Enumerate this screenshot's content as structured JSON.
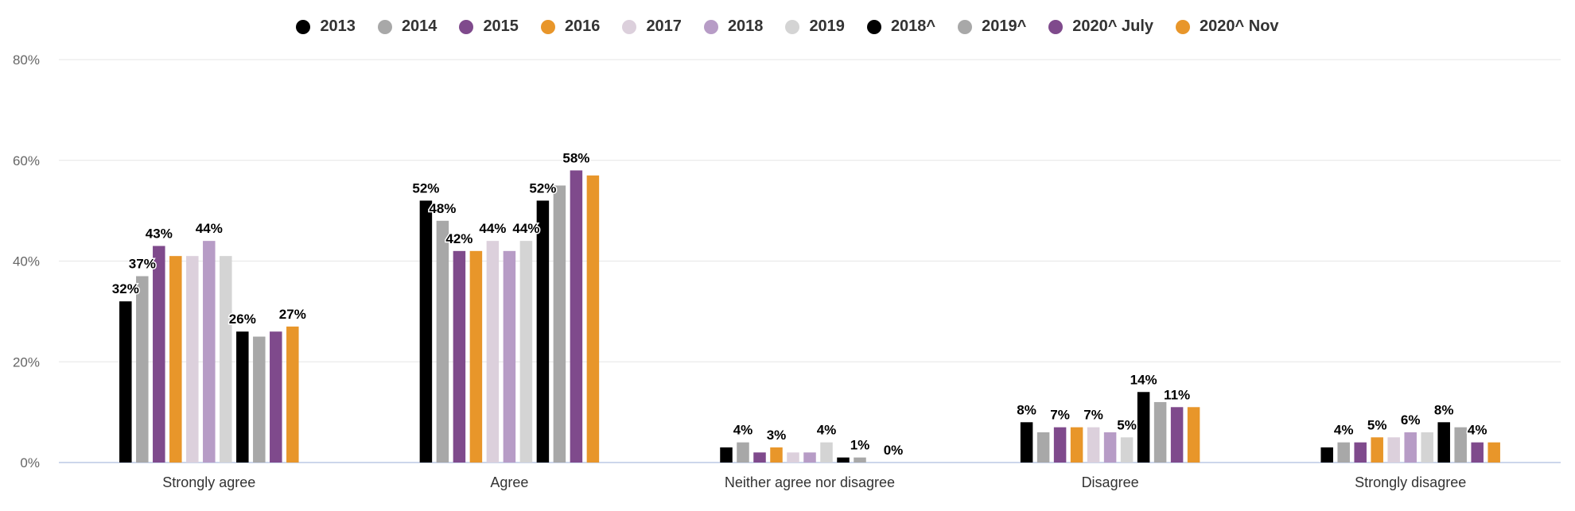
{
  "chart_data": {
    "type": "bar",
    "categories": [
      "Strongly agree",
      "Agree",
      "Neither agree nor disagree",
      "Disagree",
      "Strongly disagree"
    ],
    "ylim": [
      0,
      80
    ],
    "yticks": [
      "0%",
      "20%",
      "40%",
      "60%",
      "80%"
    ],
    "ytick_values": [
      0,
      20,
      40,
      60,
      80
    ],
    "legend_position": "top-center",
    "grid": true,
    "series": [
      {
        "name": "2013",
        "color": "#000000",
        "values": [
          32,
          52,
          3,
          8,
          3
        ]
      },
      {
        "name": "2014",
        "color": "#a8a8a8",
        "values": [
          37,
          48,
          4,
          6,
          4
        ]
      },
      {
        "name": "2015",
        "color": "#7f4a8c",
        "values": [
          43,
          42,
          2,
          7,
          4
        ]
      },
      {
        "name": "2016",
        "color": "#e8962a",
        "values": [
          41,
          42,
          3,
          7,
          5
        ]
      },
      {
        "name": "2017",
        "color": "#dcd0dc",
        "values": [
          41,
          44,
          2,
          7,
          5
        ]
      },
      {
        "name": "2018",
        "color": "#b79cc6",
        "values": [
          44,
          42,
          2,
          6,
          6
        ]
      },
      {
        "name": "2019",
        "color": "#d4d4d4",
        "values": [
          41,
          44,
          4,
          5,
          6
        ]
      },
      {
        "name": "2018^",
        "color": "#000000",
        "values": [
          26,
          52,
          1,
          14,
          8
        ]
      },
      {
        "name": "2019^",
        "color": "#a8a8a8",
        "values": [
          25,
          55,
          1,
          12,
          7
        ]
      },
      {
        "name": "2020^ July",
        "color": "#7f4a8c",
        "values": [
          26,
          58,
          0,
          11,
          4
        ]
      },
      {
        "name": "2020^ Nov",
        "color": "#e8962a",
        "values": [
          27,
          57,
          0,
          11,
          4
        ]
      }
    ],
    "data_labels": [
      {
        "category": 0,
        "series": 0,
        "text": "32%"
      },
      {
        "category": 0,
        "series": 1,
        "text": "37%"
      },
      {
        "category": 0,
        "series": 2,
        "text": "43%"
      },
      {
        "category": 0,
        "series": 5,
        "text": "44%"
      },
      {
        "category": 0,
        "series": 7,
        "text": "26%"
      },
      {
        "category": 0,
        "series": 10,
        "text": "27%"
      },
      {
        "category": 1,
        "series": 0,
        "text": "52%"
      },
      {
        "category": 1,
        "series": 1,
        "text": "48%"
      },
      {
        "category": 1,
        "series": 2,
        "text": "42%"
      },
      {
        "category": 1,
        "series": 4,
        "text": "44%"
      },
      {
        "category": 1,
        "series": 6,
        "text": "44%"
      },
      {
        "category": 1,
        "series": 7,
        "text": "52%"
      },
      {
        "category": 1,
        "series": 9,
        "text": "58%"
      },
      {
        "category": 2,
        "series": 1,
        "text": "4%"
      },
      {
        "category": 2,
        "series": 3,
        "text": "3%"
      },
      {
        "category": 2,
        "series": 6,
        "text": "4%"
      },
      {
        "category": 2,
        "series": 8,
        "text": "1%"
      },
      {
        "category": 2,
        "series": 10,
        "text": "0%"
      },
      {
        "category": 3,
        "series": 0,
        "text": "8%"
      },
      {
        "category": 3,
        "series": 2,
        "text": "7%"
      },
      {
        "category": 3,
        "series": 4,
        "text": "7%"
      },
      {
        "category": 3,
        "series": 6,
        "text": "5%"
      },
      {
        "category": 3,
        "series": 7,
        "text": "14%"
      },
      {
        "category": 3,
        "series": 9,
        "text": "11%"
      },
      {
        "category": 4,
        "series": 1,
        "text": "4%"
      },
      {
        "category": 4,
        "series": 3,
        "text": "5%"
      },
      {
        "category": 4,
        "series": 5,
        "text": "6%"
      },
      {
        "category": 4,
        "series": 7,
        "text": "8%"
      },
      {
        "category": 4,
        "series": 9,
        "text": "4%"
      }
    ],
    "colors": {
      "grid": "#e6e6e6",
      "axis": "#ccd6eb",
      "tick_text": "#666666",
      "label_text": "#000000"
    }
  }
}
